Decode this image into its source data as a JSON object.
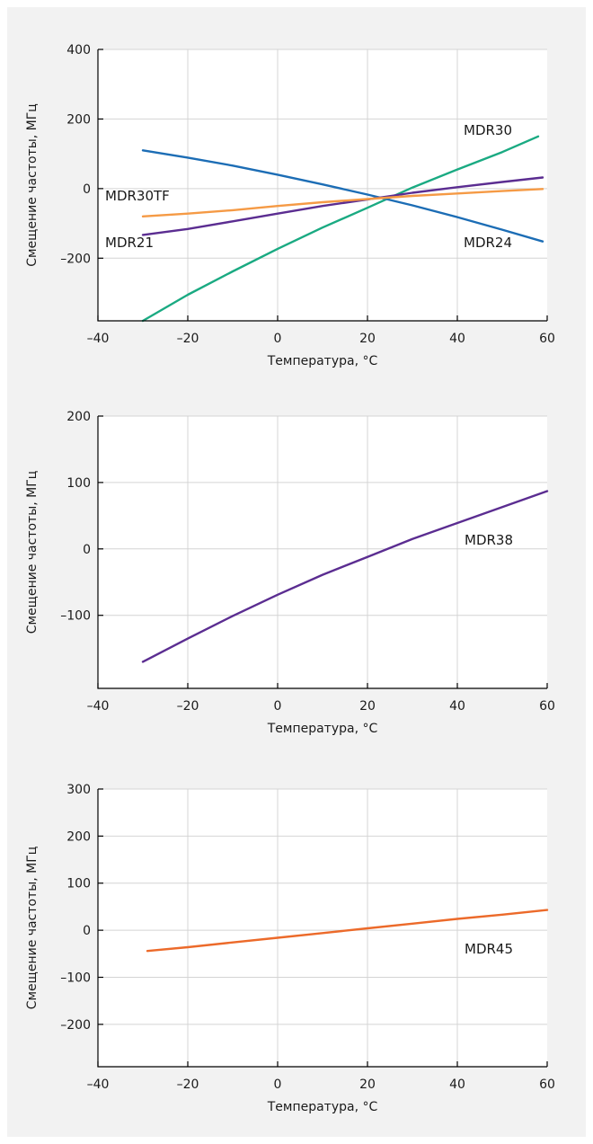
{
  "chart_data": [
    {
      "type": "line",
      "xlabel": "Температура, °C",
      "ylabel": "Смещение частоты, МГц",
      "xlim": [
        -40,
        60
      ],
      "ylim": [
        -380,
        400
      ],
      "xticks": [
        -40,
        -20,
        0,
        20,
        40,
        60
      ],
      "xtick_labels": [
        "–40",
        "–20",
        "0",
        "20",
        "40",
        "60"
      ],
      "yticks": [
        400,
        200,
        0,
        -200
      ],
      "ytick_labels": [
        "400",
        "200",
        "0",
        "–200"
      ],
      "grid": true,
      "series": [
        {
          "name": "MDR30",
          "color": "#1aaa82",
          "x": [
            -30,
            -20,
            -10,
            0,
            10,
            20,
            30,
            40,
            50,
            58
          ],
          "y": [
            -380,
            -305,
            -238,
            -173,
            -112,
            -55,
            3,
            55,
            105,
            150
          ],
          "label_x": -20,
          "label_y": 0
        },
        {
          "name": "MDR24",
          "color": "#1c6db5",
          "x": [
            -30,
            -20,
            -10,
            0,
            10,
            20,
            30,
            40,
            50,
            59
          ],
          "y": [
            110,
            89,
            66,
            40,
            12,
            -17,
            -48,
            -82,
            -118,
            -152
          ],
          "label_x": -20,
          "label_y": 0
        },
        {
          "name": "MDR21",
          "color": "#5b2d91",
          "x": [
            -30,
            -20,
            -10,
            0,
            10,
            20,
            30,
            40,
            50,
            59
          ],
          "y": [
            -133,
            -116,
            -94,
            -72,
            -50,
            -31,
            -12,
            4,
            19,
            32
          ],
          "label_x": -20,
          "label_y": 0
        },
        {
          "name": "MDR30TF",
          "color": "#f59a45",
          "x": [
            -30,
            -20,
            -10,
            0,
            10,
            20,
            30,
            40,
            50,
            59
          ],
          "y": [
            -80,
            -72,
            -62,
            -50,
            -39,
            -30,
            -21,
            -14,
            -7,
            -1
          ],
          "label_x": -20,
          "label_y": 0
        }
      ]
    },
    {
      "type": "line",
      "xlabel": "Температура, °C",
      "ylabel": "Смещение частоты, МГц",
      "xlim": [
        -40,
        60
      ],
      "ylim": [
        -210,
        200
      ],
      "xticks": [
        -40,
        -20,
        0,
        20,
        40,
        60
      ],
      "xtick_labels": [
        "–40",
        "–20",
        "0",
        "20",
        "40",
        "60"
      ],
      "yticks": [
        200,
        100,
        0,
        -100
      ],
      "ytick_labels": [
        "200",
        "100",
        "0",
        "–100"
      ],
      "grid": true,
      "series": [
        {
          "name": "MDR38",
          "color": "#5b2d91",
          "x": [
            -30,
            -20,
            -10,
            0,
            10,
            20,
            30,
            40,
            50,
            60
          ],
          "y": [
            -170,
            -135,
            -101,
            -69,
            -39,
            -12,
            15,
            39,
            63,
            87
          ],
          "label_x": -20,
          "label_y": 0
        }
      ]
    },
    {
      "type": "line",
      "xlabel": "Температура, °C",
      "ylabel": "Смещение частоты, МГц",
      "xlim": [
        -40,
        60
      ],
      "ylim": [
        -290,
        300
      ],
      "xticks": [
        -40,
        -20,
        0,
        20,
        40,
        60
      ],
      "xtick_labels": [
        "–40",
        "–20",
        "0",
        "20",
        "40",
        "60"
      ],
      "yticks": [
        300,
        200,
        100,
        0,
        -100,
        -200
      ],
      "ytick_labels": [
        "300",
        "200",
        "100",
        "0",
        "–100",
        "–200"
      ],
      "grid": true,
      "series": [
        {
          "name": "MDR45",
          "color": "#ec6a2a",
          "x": [
            -29,
            -20,
            -10,
            0,
            10,
            20,
            30,
            40,
            50,
            60
          ],
          "y": [
            -44,
            -36,
            -26,
            -16,
            -6,
            4,
            14,
            24,
            33,
            43
          ],
          "label_x": -20,
          "label_y": 0
        }
      ]
    }
  ]
}
